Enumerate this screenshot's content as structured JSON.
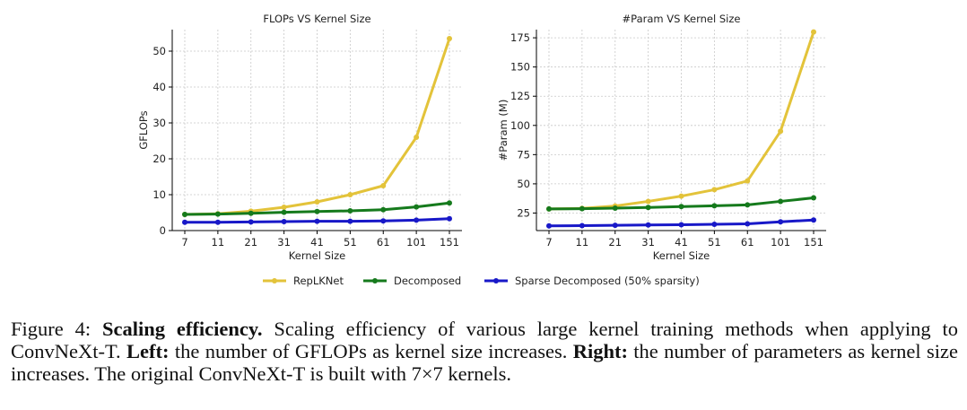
{
  "chart_data": [
    {
      "type": "line",
      "title": "FLOPs VS Kernel Size",
      "xlabel": "Kernel Size",
      "ylabel": "GFLOPs",
      "categories": [
        "7",
        "11",
        "21",
        "31",
        "41",
        "51",
        "61",
        "101",
        "151"
      ],
      "ylim": [
        0,
        56
      ],
      "yticks": [
        0,
        10,
        20,
        30,
        40,
        50
      ],
      "grid": true,
      "series": [
        {
          "name": "RepLKNet",
          "values": [
            4.5,
            4.7,
            5.4,
            6.5,
            8.0,
            10.0,
            12.5,
            26.0,
            53.5
          ]
        },
        {
          "name": "Decomposed",
          "values": [
            4.5,
            4.6,
            4.8,
            5.1,
            5.3,
            5.5,
            5.8,
            6.6,
            7.7
          ]
        },
        {
          "name": "Sparse Decomposed (50% sparsity)",
          "values": [
            2.3,
            2.3,
            2.4,
            2.5,
            2.6,
            2.6,
            2.7,
            2.9,
            3.3
          ]
        }
      ]
    },
    {
      "type": "line",
      "title": "#Param VS Kernel Size",
      "xlabel": "Kernel Size",
      "ylabel": "#Param (M)",
      "categories": [
        "7",
        "11",
        "21",
        "31",
        "41",
        "51",
        "61",
        "101",
        "151"
      ],
      "ylim": [
        10,
        182
      ],
      "yticks": [
        25,
        50,
        75,
        100,
        125,
        150,
        175
      ],
      "grid": true,
      "series": [
        {
          "name": "RepLKNet",
          "values": [
            28.5,
            29,
            31,
            35,
            39.5,
            45,
            52.5,
            95,
            180
          ]
        },
        {
          "name": "Decomposed",
          "values": [
            28.5,
            28.7,
            29.2,
            29.8,
            30.5,
            31.2,
            32,
            35,
            38
          ]
        },
        {
          "name": "Sparse Decomposed (50% sparsity)",
          "values": [
            14,
            14.2,
            14.5,
            14.8,
            15,
            15.4,
            15.8,
            17.5,
            19
          ]
        }
      ]
    }
  ],
  "legend": {
    "items": [
      {
        "label": "RepLKNet",
        "color": "#e3c33a"
      },
      {
        "label": "Decomposed",
        "color": "#157a1c"
      },
      {
        "label": "Sparse Decomposed (50% sparsity)",
        "color": "#1818c8"
      }
    ]
  },
  "caption": {
    "prefix": "Figure 4: ",
    "bold_title": "Scaling efficiency.",
    "text1": " Scaling efficiency of various large kernel training methods when applying to ConvNeXt-T. ",
    "bold_left": "Left:",
    "text2": " the number of GFLOPs as kernel size increases. ",
    "bold_right": "Right:",
    "text3": " the number of parameters as kernel size increases. The original ConvNeXt-T is built with 7×7 kernels."
  }
}
